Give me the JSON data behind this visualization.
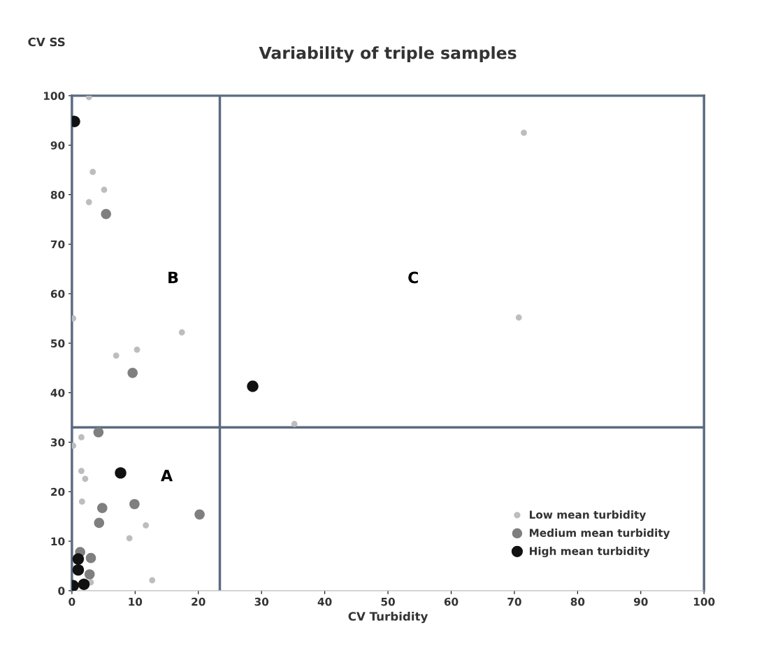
{
  "chart_data": {
    "type": "scatter",
    "title": "Variability of triple samples",
    "xlabel": "CV Turbidity",
    "ylabel": "CV SS",
    "xlim": [
      0,
      100
    ],
    "ylim": [
      0,
      100
    ],
    "xticks": [
      0,
      10,
      20,
      30,
      40,
      50,
      60,
      70,
      80,
      90,
      100
    ],
    "yticks": [
      0,
      10,
      20,
      30,
      40,
      50,
      60,
      70,
      80,
      90,
      100
    ],
    "grid": false,
    "legend": "bottom right",
    "marker": "circle",
    "series": [
      {
        "name": "Low mean turbidity",
        "color": "#bdbdbd",
        "x": [
          2.7,
          3.3,
          5.1,
          2.7,
          17.4,
          10.3,
          7.0,
          0.2,
          1.5,
          0.2,
          1.5,
          2.1,
          1.6,
          11.7,
          9.1,
          12.7,
          3.0,
          35.2,
          71.5,
          70.7
        ],
        "values": [
          99.7,
          84.6,
          81.0,
          78.5,
          52.2,
          48.7,
          47.5,
          55.0,
          31.0,
          29.3,
          24.2,
          22.6,
          18.0,
          13.2,
          10.6,
          2.1,
          1.7,
          33.7,
          92.5,
          55.2
        ]
      },
      {
        "name": "Medium mean turbidity",
        "color": "#7f7f7f",
        "x": [
          5.4,
          9.6,
          4.2,
          4.8,
          9.9,
          4.3,
          20.2,
          1.3,
          3.0,
          2.8
        ],
        "values": [
          76.1,
          44.0,
          32.0,
          16.7,
          17.5,
          13.7,
          15.4,
          7.8,
          6.6,
          3.3
        ]
      },
      {
        "name": "High mean turbidity",
        "color": "#111111",
        "x": [
          0.4,
          7.7,
          28.6,
          1.0,
          1.0,
          1.1,
          1.9,
          0.3,
          0.2
        ],
        "values": [
          94.8,
          23.8,
          41.3,
          6.4,
          4.2,
          null,
          1.3,
          null,
          1.0
        ]
      }
    ],
    "ref_lines": [
      {
        "axis": "x",
        "value": 23.4,
        "color": "#5b6b80"
      },
      {
        "axis": "y",
        "value": 33,
        "color": "#5b6b80"
      }
    ],
    "annotations": [
      "A",
      "B",
      "C"
    ]
  }
}
